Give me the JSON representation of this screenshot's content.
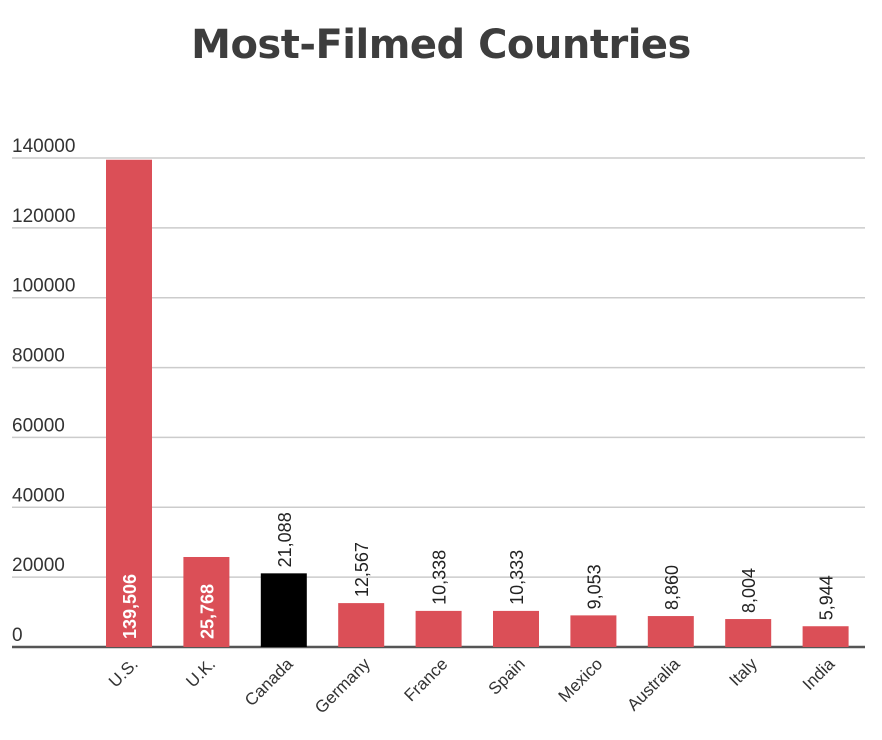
{
  "chart_data": {
    "type": "bar",
    "title": "Most-Filmed Countries",
    "xlabel": "",
    "ylabel": "",
    "ylim": [
      0,
      140000
    ],
    "yticks": [
      "0",
      "20000",
      "40000",
      "60000",
      "80000",
      "100000",
      "120000",
      "140000"
    ],
    "grid": true,
    "legend": "none",
    "categories": [
      "U.S.",
      "U.K.",
      "Canada",
      "Germany",
      "France",
      "Spain",
      "Mexico",
      "Australia",
      "Italy",
      "India"
    ],
    "values": [
      139506,
      25768,
      21088,
      12567,
      10338,
      10333,
      9053,
      8860,
      8004,
      5944
    ],
    "value_labels": [
      "139,506",
      "25,768",
      "21,088",
      "12,567",
      "10,338",
      "10,333",
      "9,053",
      "8,860",
      "8,004",
      "5,944"
    ],
    "highlight_category": "Canada",
    "colors": {
      "bar": "#db4f57",
      "highlight": "#000000",
      "grid": "#cccccc",
      "axis": "#555555"
    }
  }
}
